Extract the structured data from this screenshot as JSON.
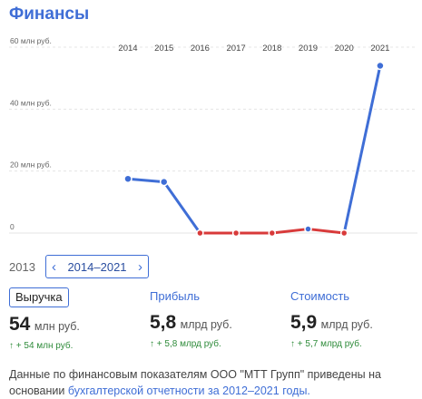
{
  "header": {
    "title": "Финансы"
  },
  "chart_data": {
    "type": "line",
    "x": [
      "2014",
      "2015",
      "2016",
      "2017",
      "2018",
      "2019",
      "2020",
      "2021"
    ],
    "values": [
      17.5,
      16.5,
      0,
      0,
      0,
      1.3,
      0,
      54
    ],
    "ylim": [
      0,
      60
    ],
    "y_ticks": [
      0,
      20,
      40,
      60
    ],
    "y_tick_labels": [
      "0",
      "20 млн руб.",
      "40 млн руб.",
      "60 млн руб."
    ],
    "grid": false,
    "colors": {
      "positive": "#3f6ed6",
      "low": "#d83a3a",
      "point": "#3f6ed6"
    }
  },
  "period": {
    "prev_year": "2013",
    "range_label": "2014–2021",
    "prev_icon": "chevron-left-icon",
    "next_icon": "chevron-right-icon"
  },
  "metrics": [
    {
      "label": "Выручка",
      "value": "54",
      "unit": "млн руб.",
      "delta": "↑ + 54 млн руб."
    },
    {
      "label": "Прибыль",
      "value": "5,8",
      "unit": "млрд руб.",
      "delta": "↑ + 5,8 млрд руб."
    },
    {
      "label": "Стоимость",
      "value": "5,9",
      "unit": "млрд руб.",
      "delta": "↑ + 5,7 млрд руб."
    }
  ],
  "footnote": {
    "text": "Данные по финансовым показателям ООО \"МТТ Групп\" приведены на основании ",
    "link": "бухгалтерской отчетности за 2012–2021 годы."
  }
}
